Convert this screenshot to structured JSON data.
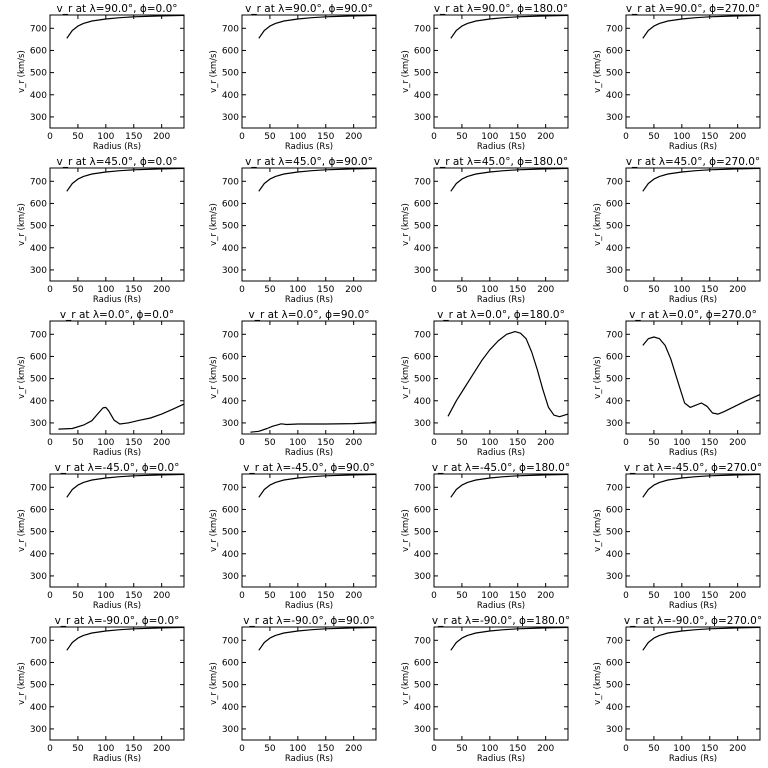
{
  "chart_data": [
    {
      "type": "line",
      "title": "v_r at λ=90.0°, ϕ=0.0°",
      "xlabel": "Radius (Rs)",
      "ylabel": "v_r (km/s)",
      "xlim": [
        0,
        240
      ],
      "ylim": [
        250,
        760
      ],
      "xticks": [
        0,
        50,
        100,
        150,
        200
      ],
      "yticks": [
        300,
        400,
        500,
        600,
        700
      ],
      "series": [
        {
          "x": [
            30,
            40,
            50,
            60,
            75,
            100,
            125,
            150,
            200,
            240
          ],
          "y": [
            655,
            690,
            710,
            722,
            733,
            742,
            748,
            752,
            756,
            758
          ]
        }
      ]
    },
    {
      "type": "line",
      "title": "v_r at λ=90.0°, ϕ=90.0°",
      "xlabel": "Radius (Rs)",
      "ylabel": "v_r (km/s)",
      "xlim": [
        0,
        240
      ],
      "ylim": [
        250,
        760
      ],
      "xticks": [
        0,
        50,
        100,
        150,
        200
      ],
      "yticks": [
        300,
        400,
        500,
        600,
        700
      ],
      "series": [
        {
          "x": [
            30,
            40,
            50,
            60,
            75,
            100,
            125,
            150,
            200,
            240
          ],
          "y": [
            655,
            690,
            710,
            722,
            733,
            742,
            748,
            752,
            756,
            758
          ]
        }
      ]
    },
    {
      "type": "line",
      "title": "v_r at λ=90.0°, ϕ=180.0°",
      "xlabel": "Radius (Rs)",
      "ylabel": "v_r (km/s)",
      "xlim": [
        0,
        240
      ],
      "ylim": [
        250,
        760
      ],
      "xticks": [
        0,
        50,
        100,
        150,
        200
      ],
      "yticks": [
        300,
        400,
        500,
        600,
        700
      ],
      "series": [
        {
          "x": [
            30,
            40,
            50,
            60,
            75,
            100,
            125,
            150,
            200,
            240
          ],
          "y": [
            655,
            690,
            710,
            722,
            733,
            742,
            748,
            752,
            756,
            758
          ]
        }
      ]
    },
    {
      "type": "line",
      "title": "v_r at λ=90.0°, ϕ=270.0°",
      "xlabel": "Radius (Rs)",
      "ylabel": "v_r (km/s)",
      "xlim": [
        0,
        240
      ],
      "ylim": [
        250,
        760
      ],
      "xticks": [
        0,
        50,
        100,
        150,
        200
      ],
      "yticks": [
        300,
        400,
        500,
        600,
        700
      ],
      "series": [
        {
          "x": [
            30,
            40,
            50,
            60,
            75,
            100,
            125,
            150,
            200,
            240
          ],
          "y": [
            655,
            690,
            710,
            722,
            733,
            742,
            748,
            752,
            756,
            758
          ]
        }
      ]
    },
    {
      "type": "line",
      "title": "v_r at λ=45.0°, ϕ=0.0°",
      "xlabel": "Radius (Rs)",
      "ylabel": "v_r (km/s)",
      "xlim": [
        0,
        240
      ],
      "ylim": [
        250,
        760
      ],
      "xticks": [
        0,
        50,
        100,
        150,
        200
      ],
      "yticks": [
        300,
        400,
        500,
        600,
        700
      ],
      "series": [
        {
          "x": [
            30,
            40,
            50,
            60,
            75,
            100,
            125,
            150,
            200,
            240
          ],
          "y": [
            655,
            690,
            710,
            722,
            733,
            742,
            748,
            752,
            756,
            758
          ]
        }
      ]
    },
    {
      "type": "line",
      "title": "v_r at λ=45.0°, ϕ=90.0°",
      "xlabel": "Radius (Rs)",
      "ylabel": "v_r (km/s)",
      "xlim": [
        0,
        240
      ],
      "ylim": [
        250,
        760
      ],
      "xticks": [
        0,
        50,
        100,
        150,
        200
      ],
      "yticks": [
        300,
        400,
        500,
        600,
        700
      ],
      "series": [
        {
          "x": [
            30,
            40,
            50,
            60,
            75,
            100,
            125,
            150,
            200,
            240
          ],
          "y": [
            655,
            690,
            710,
            722,
            733,
            742,
            748,
            752,
            756,
            758
          ]
        }
      ]
    },
    {
      "type": "line",
      "title": "v_r at λ=45.0°, ϕ=180.0°",
      "xlabel": "Radius (Rs)",
      "ylabel": "v_r (km/s)",
      "xlim": [
        0,
        240
      ],
      "ylim": [
        250,
        760
      ],
      "xticks": [
        0,
        50,
        100,
        150,
        200
      ],
      "yticks": [
        300,
        400,
        500,
        600,
        700
      ],
      "series": [
        {
          "x": [
            30,
            40,
            50,
            60,
            75,
            100,
            125,
            150,
            200,
            240
          ],
          "y": [
            655,
            690,
            710,
            722,
            733,
            742,
            748,
            752,
            756,
            758
          ]
        }
      ]
    },
    {
      "type": "line",
      "title": "v_r at λ=45.0°, ϕ=270.0°",
      "xlabel": "Radius (Rs)",
      "ylabel": "v_r (km/s)",
      "xlim": [
        0,
        240
      ],
      "ylim": [
        250,
        760
      ],
      "xticks": [
        0,
        50,
        100,
        150,
        200
      ],
      "yticks": [
        300,
        400,
        500,
        600,
        700
      ],
      "series": [
        {
          "x": [
            30,
            40,
            50,
            60,
            75,
            100,
            125,
            150,
            200,
            240
          ],
          "y": [
            655,
            690,
            710,
            722,
            733,
            742,
            748,
            752,
            756,
            758
          ]
        }
      ]
    },
    {
      "type": "line",
      "title": "v_r at λ=0.0°, ϕ=0.0°",
      "xlabel": "Radius (Rs)",
      "ylabel": "v_r (km/s)",
      "xlim": [
        0,
        240
      ],
      "ylim": [
        250,
        760
      ],
      "xticks": [
        0,
        50,
        100,
        150,
        200
      ],
      "yticks": [
        300,
        400,
        500,
        600,
        700
      ],
      "series": [
        {
          "x": [
            15,
            40,
            60,
            75,
            85,
            95,
            100,
            105,
            115,
            125,
            140,
            160,
            180,
            200,
            220,
            240
          ],
          "y": [
            272,
            275,
            290,
            310,
            340,
            368,
            370,
            355,
            312,
            295,
            300,
            312,
            322,
            340,
            362,
            385
          ]
        }
      ]
    },
    {
      "type": "line",
      "title": "v_r at λ=0.0°, ϕ=90.0°",
      "xlabel": "Radius (Rs)",
      "ylabel": "v_r (km/s)",
      "xlim": [
        0,
        240
      ],
      "ylim": [
        250,
        760
      ],
      "xticks": [
        0,
        50,
        100,
        150,
        200
      ],
      "yticks": [
        300,
        400,
        500,
        600,
        700
      ],
      "series": [
        {
          "x": [
            15,
            30,
            45,
            55,
            65,
            70,
            80,
            100,
            150,
            200,
            230,
            240
          ],
          "y": [
            258,
            262,
            275,
            285,
            292,
            296,
            293,
            295,
            295,
            297,
            300,
            305
          ]
        }
      ]
    },
    {
      "type": "line",
      "title": "v_r at λ=0.0°, ϕ=180.0°",
      "xlabel": "Radius (Rs)",
      "ylabel": "v_r (km/s)",
      "xlim": [
        0,
        240
      ],
      "ylim": [
        250,
        760
      ],
      "xticks": [
        0,
        50,
        100,
        150,
        200
      ],
      "yticks": [
        300,
        400,
        500,
        600,
        700
      ],
      "series": [
        {
          "x": [
            25,
            40,
            55,
            70,
            85,
            100,
            115,
            130,
            145,
            155,
            165,
            175,
            185,
            195,
            205,
            215,
            225,
            240
          ],
          "y": [
            330,
            400,
            460,
            520,
            580,
            630,
            670,
            700,
            712,
            705,
            680,
            620,
            540,
            450,
            370,
            335,
            328,
            340
          ]
        }
      ]
    },
    {
      "type": "line",
      "title": "v_r at λ=0.0°, ϕ=270.0°",
      "xlabel": "Radius (Rs)",
      "ylabel": "v_r (km/s)",
      "xlim": [
        0,
        240
      ],
      "ylim": [
        250,
        760
      ],
      "xticks": [
        0,
        50,
        100,
        150,
        200
      ],
      "yticks": [
        300,
        400,
        500,
        600,
        700
      ],
      "series": [
        {
          "x": [
            30,
            40,
            50,
            60,
            70,
            80,
            95,
            105,
            115,
            125,
            135,
            145,
            155,
            165,
            175,
            195,
            215,
            240
          ],
          "y": [
            650,
            680,
            688,
            680,
            650,
            590,
            470,
            390,
            370,
            380,
            390,
            375,
            345,
            340,
            350,
            375,
            400,
            428
          ]
        }
      ]
    },
    {
      "type": "line",
      "title": "v_r at λ=-45.0°, ϕ=0.0°",
      "xlabel": "Radius (Rs)",
      "ylabel": "v_r (km/s)",
      "xlim": [
        0,
        240
      ],
      "ylim": [
        250,
        760
      ],
      "xticks": [
        0,
        50,
        100,
        150,
        200
      ],
      "yticks": [
        300,
        400,
        500,
        600,
        700
      ],
      "series": [
        {
          "x": [
            30,
            40,
            50,
            60,
            75,
            100,
            125,
            150,
            200,
            240
          ],
          "y": [
            655,
            690,
            710,
            722,
            733,
            742,
            748,
            752,
            756,
            758
          ]
        }
      ]
    },
    {
      "type": "line",
      "title": "v_r at λ=-45.0°, ϕ=90.0°",
      "xlabel": "Radius (Rs)",
      "ylabel": "v_r (km/s)",
      "xlim": [
        0,
        240
      ],
      "ylim": [
        250,
        760
      ],
      "xticks": [
        0,
        50,
        100,
        150,
        200
      ],
      "yticks": [
        300,
        400,
        500,
        600,
        700
      ],
      "series": [
        {
          "x": [
            30,
            40,
            50,
            60,
            75,
            100,
            125,
            150,
            200,
            240
          ],
          "y": [
            655,
            690,
            710,
            722,
            733,
            742,
            748,
            752,
            756,
            758
          ]
        }
      ]
    },
    {
      "type": "line",
      "title": "v_r at λ=-45.0°, ϕ=180.0°",
      "xlabel": "Radius (Rs)",
      "ylabel": "v_r (km/s)",
      "xlim": [
        0,
        240
      ],
      "ylim": [
        250,
        760
      ],
      "xticks": [
        0,
        50,
        100,
        150,
        200
      ],
      "yticks": [
        300,
        400,
        500,
        600,
        700
      ],
      "series": [
        {
          "x": [
            30,
            40,
            50,
            60,
            75,
            100,
            125,
            150,
            200,
            240
          ],
          "y": [
            655,
            690,
            710,
            722,
            733,
            742,
            748,
            752,
            756,
            758
          ]
        }
      ]
    },
    {
      "type": "line",
      "title": "v_r at λ=-45.0°, ϕ=270.0°",
      "xlabel": "Radius (Rs)",
      "ylabel": "v_r (km/s)",
      "xlim": [
        0,
        240
      ],
      "ylim": [
        250,
        760
      ],
      "xticks": [
        0,
        50,
        100,
        150,
        200
      ],
      "yticks": [
        300,
        400,
        500,
        600,
        700
      ],
      "series": [
        {
          "x": [
            30,
            40,
            50,
            60,
            75,
            100,
            125,
            150,
            200,
            240
          ],
          "y": [
            655,
            690,
            710,
            722,
            733,
            742,
            748,
            752,
            756,
            758
          ]
        }
      ]
    },
    {
      "type": "line",
      "title": "v_r at λ=-90.0°, ϕ=0.0°",
      "xlabel": "Radius (Rs)",
      "ylabel": "v_r (km/s)",
      "xlim": [
        0,
        240
      ],
      "ylim": [
        250,
        760
      ],
      "xticks": [
        0,
        50,
        100,
        150,
        200
      ],
      "yticks": [
        300,
        400,
        500,
        600,
        700
      ],
      "series": [
        {
          "x": [
            30,
            40,
            50,
            60,
            75,
            100,
            125,
            150,
            200,
            240
          ],
          "y": [
            655,
            690,
            710,
            722,
            733,
            742,
            748,
            752,
            756,
            758
          ]
        }
      ]
    },
    {
      "type": "line",
      "title": "v_r at λ=-90.0°, ϕ=90.0°",
      "xlabel": "Radius (Rs)",
      "ylabel": "v_r (km/s)",
      "xlim": [
        0,
        240
      ],
      "ylim": [
        250,
        760
      ],
      "xticks": [
        0,
        50,
        100,
        150,
        200
      ],
      "yticks": [
        300,
        400,
        500,
        600,
        700
      ],
      "series": [
        {
          "x": [
            30,
            40,
            50,
            60,
            75,
            100,
            125,
            150,
            200,
            240
          ],
          "y": [
            655,
            690,
            710,
            722,
            733,
            742,
            748,
            752,
            756,
            758
          ]
        }
      ]
    },
    {
      "type": "line",
      "title": "v_r at λ=-90.0°, ϕ=180.0°",
      "xlabel": "Radius (Rs)",
      "ylabel": "v_r (km/s)",
      "xlim": [
        0,
        240
      ],
      "ylim": [
        250,
        760
      ],
      "xticks": [
        0,
        50,
        100,
        150,
        200
      ],
      "yticks": [
        300,
        400,
        500,
        600,
        700
      ],
      "series": [
        {
          "x": [
            30,
            40,
            50,
            60,
            75,
            100,
            125,
            150,
            200,
            240
          ],
          "y": [
            655,
            690,
            710,
            722,
            733,
            742,
            748,
            752,
            756,
            758
          ]
        }
      ]
    },
    {
      "type": "line",
      "title": "v_r at λ=-90.0°, ϕ=270.0°",
      "xlabel": "Radius (Rs)",
      "ylabel": "v_r (km/s)",
      "xlim": [
        0,
        240
      ],
      "ylim": [
        250,
        760
      ],
      "xticks": [
        0,
        50,
        100,
        150,
        200
      ],
      "yticks": [
        300,
        400,
        500,
        600,
        700
      ],
      "series": [
        {
          "x": [
            30,
            40,
            50,
            60,
            75,
            100,
            125,
            150,
            200,
            240
          ],
          "y": [
            655,
            690,
            710,
            722,
            733,
            742,
            748,
            752,
            756,
            758
          ]
        }
      ]
    }
  ]
}
